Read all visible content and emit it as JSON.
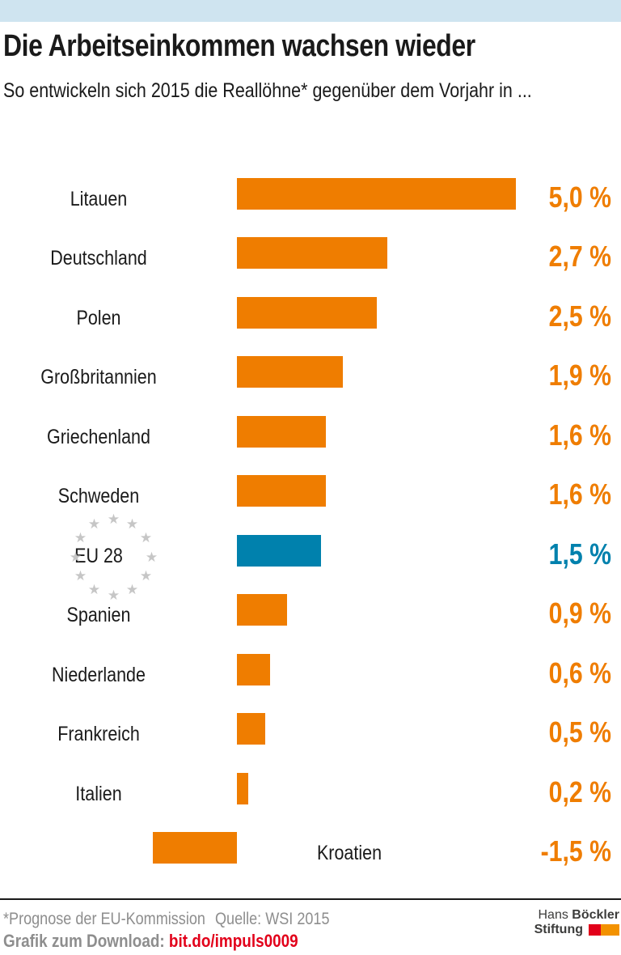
{
  "header": {
    "title": "Die Arbeitseinkommen wachsen wieder",
    "subtitle": "So entwickeln sich 2015 die Reallöhne* gegenüber dem Vorjahr in ..."
  },
  "chart_data": {
    "type": "bar",
    "orientation": "horizontal",
    "unit": "%",
    "value_format": "decimal-comma",
    "categories": [
      "Litauen",
      "Deutschland",
      "Polen",
      "Großbritannien",
      "Griechenland",
      "Schweden",
      "EU 28",
      "Spanien",
      "Niederlande",
      "Frankreich",
      "Italien",
      "Kroatien"
    ],
    "values": [
      5.0,
      2.7,
      2.5,
      1.9,
      1.6,
      1.6,
      1.5,
      0.9,
      0.6,
      0.5,
      0.2,
      -1.5
    ],
    "bars": [
      {
        "label": "Litauen",
        "value": 5.0,
        "display": "5,0 %",
        "highlight": false,
        "label_inside": false
      },
      {
        "label": "Deutschland",
        "value": 2.7,
        "display": "2,7 %",
        "highlight": false,
        "label_inside": false
      },
      {
        "label": "Polen",
        "value": 2.5,
        "display": "2,5 %",
        "highlight": false,
        "label_inside": false
      },
      {
        "label": "Großbritannien",
        "value": 1.9,
        "display": "1,9 %",
        "highlight": false,
        "label_inside": false
      },
      {
        "label": "Griechenland",
        "value": 1.6,
        "display": "1,6 %",
        "highlight": false,
        "label_inside": false
      },
      {
        "label": "Schweden",
        "value": 1.6,
        "display": "1,6 %",
        "highlight": false,
        "label_inside": false
      },
      {
        "label": "EU 28",
        "value": 1.5,
        "display": "1,5 %",
        "highlight": true,
        "label_inside": false,
        "eu_stars": true
      },
      {
        "label": "Spanien",
        "value": 0.9,
        "display": "0,9 %",
        "highlight": false,
        "label_inside": false
      },
      {
        "label": "Niederlande",
        "value": 0.6,
        "display": "0,6 %",
        "highlight": false,
        "label_inside": false
      },
      {
        "label": "Frankreich",
        "value": 0.5,
        "display": "0,5 %",
        "highlight": false,
        "label_inside": false
      },
      {
        "label": "Italien",
        "value": 0.2,
        "display": "0,2 %",
        "highlight": false,
        "label_inside": false
      },
      {
        "label": "Kroatien",
        "value": -1.5,
        "display": "-1,5 %",
        "highlight": false,
        "label_inside": true
      }
    ],
    "bar_color": "#ef7d00",
    "highlight_color": "#0081ad",
    "star_color": "#c6c6c6",
    "legend_position": "none",
    "grid": false
  },
  "footer": {
    "footnote": "*Prognose der EU-Kommission",
    "source": "Quelle: WSI 2015",
    "download_label": "Grafik zum Download:",
    "download_link": "bit.do/impuls0009"
  },
  "logo": {
    "name_regular": "Hans",
    "name_bold": "Böckler",
    "line2_bold": "Stiftung",
    "block_red": "#e2001a",
    "block_orange": "#f39200"
  },
  "colors": {
    "top_strip": "#cfe4f0",
    "text": "#1a1a1a",
    "footer_gray": "#8e8e8e",
    "link_red": "#e2001a"
  }
}
